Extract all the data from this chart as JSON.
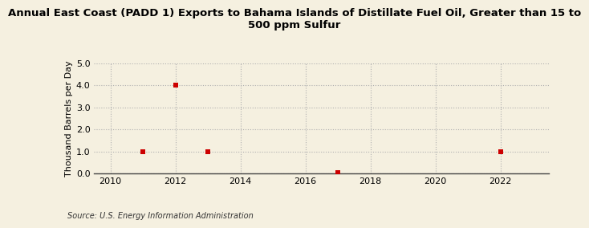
{
  "title_line1": "Annual East Coast (PADD 1) Exports to Bahama Islands of Distillate Fuel Oil, Greater than 15 to",
  "title_line2": "500 ppm Sulfur",
  "ylabel": "Thousand Barrels per Day",
  "source": "Source: U.S. Energy Information Administration",
  "x_data": [
    2011,
    2012,
    2013,
    2017,
    2022
  ],
  "y_data": [
    1.0,
    4.0,
    1.0,
    0.03,
    1.0
  ],
  "xlim": [
    2009.5,
    2023.5
  ],
  "ylim": [
    0.0,
    5.0
  ],
  "xticks": [
    2010,
    2012,
    2014,
    2016,
    2018,
    2020,
    2022
  ],
  "yticks": [
    0.0,
    1.0,
    2.0,
    3.0,
    4.0,
    5.0
  ],
  "marker_color": "#cc0000",
  "marker": "s",
  "marker_size": 4,
  "bg_color": "#f5f0e0",
  "grid_color": "#b0b0b0",
  "title_fontsize": 9.5,
  "axis_label_fontsize": 8,
  "tick_fontsize": 8,
  "source_fontsize": 7
}
